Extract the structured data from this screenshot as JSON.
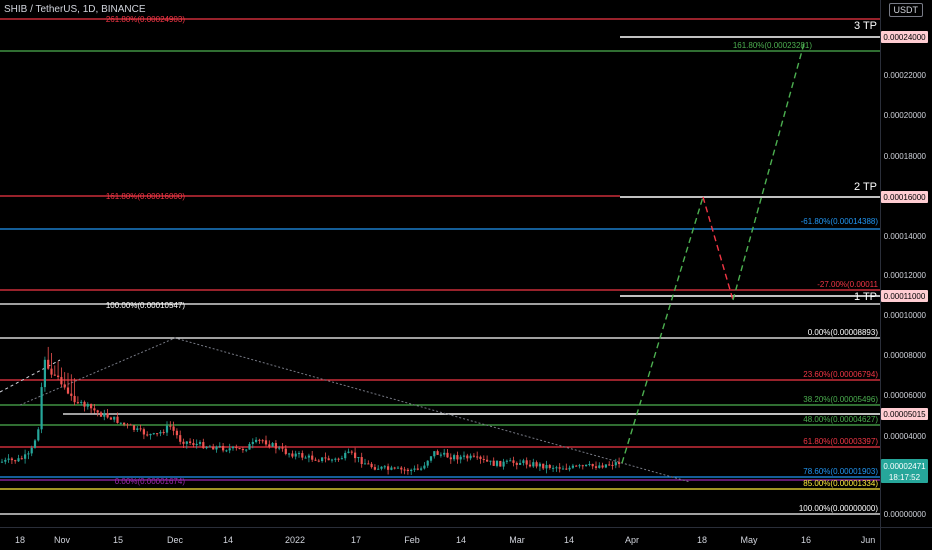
{
  "header": {
    "symbol_title": "SHIB / TetherUS, 1D, BINANCE",
    "currency": "USDT"
  },
  "chart_data": {
    "type": "candlestick",
    "symbol": "SHIB / TetherUS",
    "interval": "1D",
    "exchange": "BINANCE",
    "ylim": [
      0,
      0.00026
    ],
    "y_ticks": [
      "0.00022000",
      "0.00020000",
      "0.00018000",
      "0.00014000",
      "0.00012000",
      "0.00010000",
      "0.00008000",
      "0.00006000",
      "0.00004000",
      "0.00000000"
    ],
    "x_ticks": [
      "18",
      "Nov",
      "15",
      "Dec",
      "14",
      "2022",
      "17",
      "Feb",
      "14",
      "Mar",
      "14",
      "Apr",
      "18",
      "May",
      "16",
      "Jun"
    ],
    "current_price": "0.00002471",
    "countdown": "18:17:52",
    "price_tags": [
      {
        "label": "0.00024000",
        "color": "#ffcdd2",
        "text_color": "#000000"
      },
      {
        "label": "0.00016000",
        "color": "#ffcdd2",
        "text_color": "#000000"
      },
      {
        "label": "0.00011000",
        "color": "#ffcdd2",
        "text_color": "#000000"
      },
      {
        "label": "0.00005015",
        "color": "#ffcdd2",
        "text_color": "#000000"
      }
    ],
    "levels": [
      {
        "text": "261.80%(0.00024903)",
        "color": "#f23645",
        "align": "left"
      },
      {
        "text": "161.80%(0.00023281)",
        "color": "#4caf50",
        "align": "left"
      },
      {
        "text": "161.80%(0.00016000)",
        "color": "#f23645",
        "align": "left"
      },
      {
        "text": "-61.80%(0.00014388)",
        "color": "#2196f3",
        "align": "right"
      },
      {
        "text": "-27.00%(0.00011",
        "color": "#f23645",
        "align": "right"
      },
      {
        "text": "100.00%(0.00010547)",
        "color": "#ffffff",
        "align": "left"
      },
      {
        "text": "0.00%(0.00008893)",
        "color": "#ffffff",
        "align": "right"
      },
      {
        "text": "23.60%(0.00006794)",
        "color": "#f23645",
        "align": "right"
      },
      {
        "text": "38.20%(0.00005496)",
        "color": "#4caf50",
        "align": "right"
      },
      {
        "text": "48.00%(0.00004627)",
        "color": "#4caf50",
        "align": "right"
      },
      {
        "text": "61.80%(0.00003397)",
        "color": "#f23645",
        "align": "right"
      },
      {
        "text": "78.60%(0.00001903)",
        "color": "#2196f3",
        "align": "right"
      },
      {
        "text": "0.00%(0.00001674)",
        "color": "#9c27b0",
        "align": "left"
      },
      {
        "text": "85.00%(0.00001334)",
        "color": "#ffeb3b",
        "align": "right"
      },
      {
        "text": "100.00%(0.00000000)",
        "color": "#ffffff",
        "align": "right"
      }
    ],
    "targets": [
      "1 TP",
      "2 TP",
      "3 TP"
    ],
    "colors": {
      "up": "#26a69a",
      "down": "#ef5350",
      "projection_up": "#4caf50",
      "projection_down": "#f23645"
    }
  }
}
